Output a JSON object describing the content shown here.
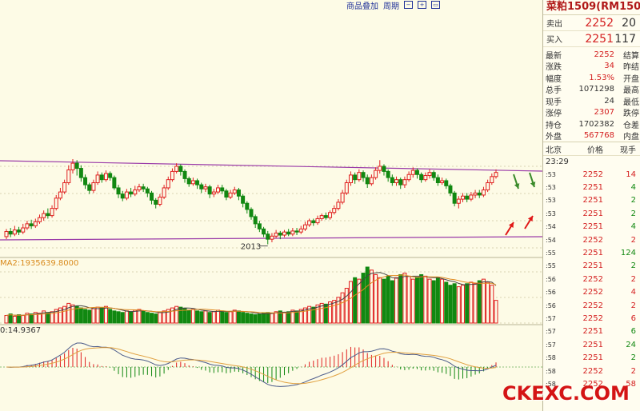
{
  "toolbar": {
    "overlay_label": "商品叠加",
    "period_label": "周期"
  },
  "chart": {
    "year_label": "2013",
    "volume_indicator": "MA2:1935639.8000",
    "macd_indicator": "0:14.9367",
    "candle_up_color": "#e02020",
    "candle_down_color": "#118811",
    "channel_color": "#9a3aa8"
  },
  "panel": {
    "title": "菜粕1509(RM150",
    "sell": {
      "label": "卖出",
      "price": "2252",
      "volume": "20"
    },
    "buy": {
      "label": "买入",
      "price": "2251",
      "volume": "117"
    },
    "stats": [
      {
        "label": "最新",
        "value": "2252",
        "label2": "结算",
        "highlight": true
      },
      {
        "label": "涨跌",
        "value": "34",
        "label2": "昨结",
        "highlight": true
      },
      {
        "label": "幅度",
        "value": "1.53%",
        "label2": "开盘",
        "highlight": true
      },
      {
        "label": "总手",
        "value": "1071298",
        "label2": "最高",
        "highlight": false
      },
      {
        "label": "现手",
        "value": "24",
        "label2": "最低",
        "highlight": false
      },
      {
        "label": "涨停",
        "value": "2307",
        "label2": "跌停",
        "highlight": true
      },
      {
        "label": "持仓",
        "value": "1702382",
        "label2": "仓差",
        "highlight": false
      },
      {
        "label": "外盘",
        "value": "567768",
        "label2": "内盘",
        "highlight": true
      }
    ],
    "ticks_header": {
      "location": "北京",
      "price": "价格",
      "volume": "现手"
    },
    "first_time": "23:29",
    "ticks": [
      {
        "time": ":53",
        "price": "2252",
        "volume": "14",
        "dir": "up"
      },
      {
        "time": ":53",
        "price": "2251",
        "volume": "4",
        "dir": "down"
      },
      {
        "time": ":53",
        "price": "2251",
        "volume": "2",
        "dir": "down"
      },
      {
        "time": ":53",
        "price": "2251",
        "volume": "2",
        "dir": "down"
      },
      {
        "time": ":54",
        "price": "2251",
        "volume": "4",
        "dir": "down"
      },
      {
        "time": ":54",
        "price": "2252",
        "volume": "2",
        "dir": "up"
      },
      {
        "time": ":55",
        "price": "2251",
        "volume": "124",
        "dir": "down"
      },
      {
        "time": ":55",
        "price": "2251",
        "volume": "2",
        "dir": "down"
      },
      {
        "time": ":56",
        "price": "2252",
        "volume": "2",
        "dir": "up"
      },
      {
        "time": ":56",
        "price": "2252",
        "volume": "4",
        "dir": "up"
      },
      {
        "time": ":56",
        "price": "2252",
        "volume": "2",
        "dir": "up"
      },
      {
        "time": ":57",
        "price": "2252",
        "volume": "6",
        "dir": "up"
      },
      {
        "time": ":57",
        "price": "2251",
        "volume": "6",
        "dir": "down"
      },
      {
        "time": ":57",
        "price": "2251",
        "volume": "24",
        "dir": "down"
      },
      {
        "time": ":58",
        "price": "2251",
        "volume": "2",
        "dir": "down"
      },
      {
        "time": ":58",
        "price": "2252",
        "volume": "2",
        "dir": "up"
      },
      {
        "time": ":58",
        "price": "2252",
        "volume": "58",
        "dir": "up"
      }
    ]
  },
  "watermark": "CKEXC.COM",
  "candles": [
    [
      2085,
      2095,
      2100,
      2080
    ],
    [
      2095,
      2090,
      2102,
      2084
    ],
    [
      2090,
      2098,
      2106,
      2086
    ],
    [
      2098,
      2094,
      2104,
      2088
    ],
    [
      2094,
      2102,
      2110,
      2090
    ],
    [
      2102,
      2110,
      2116,
      2098
    ],
    [
      2110,
      2106,
      2118,
      2100
    ],
    [
      2106,
      2114,
      2120,
      2102
    ],
    [
      2114,
      2122,
      2128,
      2110
    ],
    [
      2122,
      2130,
      2136,
      2116
    ],
    [
      2130,
      2126,
      2140,
      2120
    ],
    [
      2126,
      2140,
      2146,
      2122
    ],
    [
      2140,
      2160,
      2166,
      2136
    ],
    [
      2160,
      2172,
      2180,
      2156
    ],
    [
      2172,
      2190,
      2196,
      2168
    ],
    [
      2190,
      2215,
      2224,
      2186
    ],
    [
      2215,
      2228,
      2236,
      2208
    ],
    [
      2228,
      2218,
      2234,
      2204
    ],
    [
      2218,
      2200,
      2224,
      2192
    ],
    [
      2200,
      2186,
      2206,
      2178
    ],
    [
      2186,
      2175,
      2190,
      2168
    ],
    [
      2175,
      2190,
      2196,
      2170
    ],
    [
      2190,
      2205,
      2212,
      2186
    ],
    [
      2205,
      2196,
      2210,
      2190
    ],
    [
      2196,
      2208,
      2214,
      2192
    ],
    [
      2208,
      2200,
      2212,
      2194
    ],
    [
      2200,
      2180,
      2204,
      2176
    ],
    [
      2180,
      2168,
      2186,
      2160
    ],
    [
      2168,
      2160,
      2174,
      2154
    ],
    [
      2160,
      2172,
      2178,
      2156
    ],
    [
      2172,
      2168,
      2180,
      2162
    ],
    [
      2168,
      2176,
      2184,
      2164
    ],
    [
      2176,
      2182,
      2188,
      2172
    ],
    [
      2182,
      2178,
      2188,
      2172
    ],
    [
      2178,
      2170,
      2182,
      2162
    ],
    [
      2170,
      2156,
      2174,
      2148
    ],
    [
      2156,
      2148,
      2160,
      2140
    ],
    [
      2148,
      2162,
      2168,
      2144
    ],
    [
      2162,
      2180,
      2186,
      2158
    ],
    [
      2180,
      2196,
      2202,
      2176
    ],
    [
      2196,
      2212,
      2218,
      2192
    ],
    [
      2212,
      2222,
      2228,
      2208
    ],
    [
      2222,
      2212,
      2226,
      2204
    ],
    [
      2212,
      2198,
      2216,
      2190
    ],
    [
      2198,
      2188,
      2202,
      2182
    ],
    [
      2188,
      2194,
      2200,
      2184
    ],
    [
      2194,
      2186,
      2198,
      2178
    ],
    [
      2186,
      2178,
      2190,
      2170
    ],
    [
      2178,
      2182,
      2188,
      2172
    ],
    [
      2182,
      2168,
      2186,
      2160
    ],
    [
      2168,
      2172,
      2178,
      2162
    ],
    [
      2172,
      2180,
      2186,
      2168
    ],
    [
      2180,
      2174,
      2186,
      2168
    ],
    [
      2174,
      2162,
      2178,
      2156
    ],
    [
      2162,
      2170,
      2176,
      2158
    ],
    [
      2170,
      2176,
      2182,
      2166
    ],
    [
      2176,
      2164,
      2180,
      2156
    ],
    [
      2164,
      2150,
      2168,
      2142
    ],
    [
      2150,
      2138,
      2154,
      2130
    ],
    [
      2138,
      2124,
      2142,
      2118
    ],
    [
      2124,
      2110,
      2128,
      2102
    ],
    [
      2110,
      2100,
      2116,
      2094
    ],
    [
      2100,
      2090,
      2104,
      2084
    ],
    [
      2090,
      2080,
      2096,
      2070
    ],
    [
      2080,
      2086,
      2092,
      2074
    ],
    [
      2086,
      2092,
      2098,
      2082
    ],
    [
      2092,
      2088,
      2096,
      2080
    ],
    [
      2088,
      2094,
      2098,
      2084
    ],
    [
      2094,
      2090,
      2100,
      2086
    ],
    [
      2090,
      2096,
      2102,
      2086
    ],
    [
      2096,
      2094,
      2102,
      2088
    ],
    [
      2094,
      2100,
      2106,
      2090
    ],
    [
      2100,
      2108,
      2114,
      2096
    ],
    [
      2108,
      2116,
      2120,
      2104
    ],
    [
      2116,
      2112,
      2120,
      2106
    ],
    [
      2112,
      2120,
      2126,
      2108
    ],
    [
      2120,
      2126,
      2130,
      2116
    ],
    [
      2126,
      2122,
      2132,
      2118
    ],
    [
      2122,
      2132,
      2136,
      2118
    ],
    [
      2132,
      2140,
      2146,
      2128
    ],
    [
      2140,
      2152,
      2158,
      2136
    ],
    [
      2152,
      2170,
      2176,
      2148
    ],
    [
      2170,
      2190,
      2196,
      2166
    ],
    [
      2190,
      2205,
      2212,
      2184
    ],
    [
      2205,
      2196,
      2210,
      2188
    ],
    [
      2196,
      2210,
      2216,
      2192
    ],
    [
      2210,
      2200,
      2214,
      2192
    ],
    [
      2200,
      2188,
      2206,
      2180
    ],
    [
      2188,
      2200,
      2206,
      2184
    ],
    [
      2200,
      2214,
      2220,
      2196
    ],
    [
      2214,
      2222,
      2234,
      2208
    ],
    [
      2222,
      2212,
      2226,
      2204
    ],
    [
      2212,
      2200,
      2216,
      2192
    ],
    [
      2200,
      2190,
      2206,
      2184
    ],
    [
      2190,
      2196,
      2202,
      2184
    ],
    [
      2196,
      2186,
      2200,
      2178
    ],
    [
      2186,
      2196,
      2202,
      2180
    ],
    [
      2196,
      2206,
      2212,
      2192
    ],
    [
      2206,
      2214,
      2220,
      2200
    ],
    [
      2214,
      2206,
      2218,
      2198
    ],
    [
      2206,
      2196,
      2210,
      2190
    ],
    [
      2196,
      2204,
      2210,
      2192
    ],
    [
      2204,
      2210,
      2216,
      2198
    ],
    [
      2210,
      2200,
      2214,
      2194
    ],
    [
      2200,
      2190,
      2206,
      2184
    ],
    [
      2190,
      2194,
      2200,
      2186
    ],
    [
      2194,
      2184,
      2198,
      2178
    ],
    [
      2184,
      2170,
      2188,
      2164
    ],
    [
      2170,
      2150,
      2174,
      2144
    ],
    [
      2150,
      2158,
      2164,
      2140
    ],
    [
      2158,
      2164,
      2170,
      2152
    ],
    [
      2164,
      2158,
      2170,
      2152
    ],
    [
      2158,
      2166,
      2172,
      2154
    ],
    [
      2166,
      2170,
      2176,
      2160
    ],
    [
      2170,
      2166,
      2176,
      2160
    ],
    [
      2166,
      2176,
      2182,
      2162
    ],
    [
      2176,
      2190,
      2196,
      2172
    ],
    [
      2190,
      2202,
      2208,
      2186
    ],
    [
      2202,
      2210,
      2216,
      2198
    ]
  ],
  "volumes": [
    10,
    12,
    9,
    11,
    10,
    13,
    12,
    14,
    13,
    16,
    14,
    15,
    18,
    20,
    22,
    26,
    24,
    22,
    20,
    18,
    17,
    19,
    21,
    20,
    22,
    18,
    16,
    15,
    14,
    16,
    15,
    17,
    18,
    16,
    14,
    13,
    12,
    14,
    16,
    18,
    20,
    22,
    21,
    19,
    17,
    18,
    16,
    15,
    16,
    14,
    15,
    17,
    16,
    14,
    15,
    17,
    16,
    14,
    13,
    12,
    11,
    12,
    13,
    14,
    13,
    15,
    16,
    14,
    15,
    17,
    16,
    18,
    20,
    22,
    21,
    24,
    26,
    25,
    28,
    30,
    34,
    40,
    46,
    55,
    60,
    58,
    66,
    74,
    70,
    64,
    60,
    58,
    62,
    56,
    60,
    64,
    66,
    62,
    58,
    60,
    64,
    62,
    58,
    56,
    60,
    58,
    54,
    50,
    52,
    48,
    50,
    52,
    54,
    52,
    56,
    58,
    54,
    50,
    30
  ]
}
